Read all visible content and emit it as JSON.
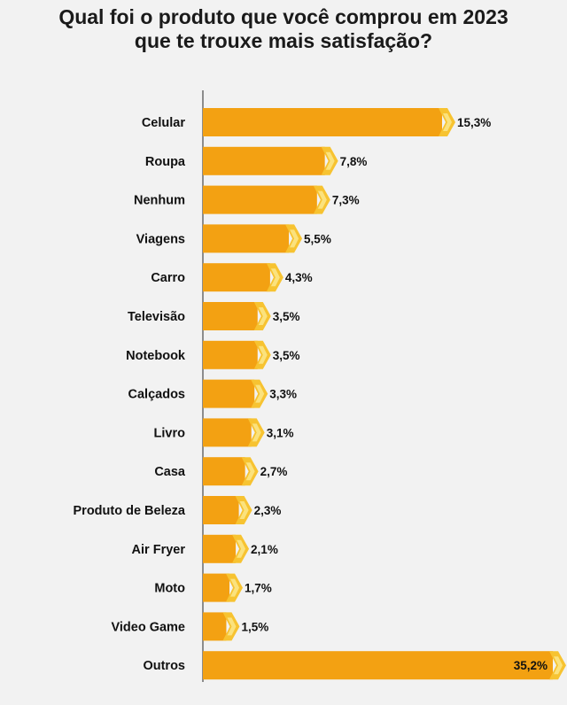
{
  "chart_data": {
    "type": "bar",
    "orientation": "horizontal",
    "title": "Qual foi o produto que você comprou em 2023 que te trouxe mais satisfação?",
    "title_lines": [
      "Qual foi o produto que você comprou em 2023",
      "que te trouxe mais satisfação?"
    ],
    "categories": [
      "Celular",
      "Roupa",
      "Nenhum",
      "Viagens",
      "Carro",
      "Televisão",
      "Notebook",
      "Calçados",
      "Livro",
      "Casa",
      "Produto de Beleza",
      "Air Fryer",
      "Moto",
      "Video Game",
      "Outros"
    ],
    "values": [
      15.3,
      7.8,
      7.3,
      5.5,
      4.3,
      3.5,
      3.5,
      3.3,
      3.1,
      2.7,
      2.3,
      2.1,
      1.7,
      1.5,
      35.2
    ],
    "labels": [
      "15,3%",
      "7,8%",
      "7,3%",
      "5,5%",
      "4,3%",
      "3,5%",
      "3,5%",
      "3,3%",
      "3,1%",
      "2,7%",
      "2,3%",
      "2,1%",
      "1,7%",
      "1,5%",
      "35,2%"
    ],
    "xlabel": "",
    "ylabel": "",
    "grid": false,
    "legend": "none",
    "colors": {
      "bar": "#f3a112",
      "arrow_outer": "#f7c331",
      "arrow_inner": "#fbe27d",
      "axis": "#8c8c8c"
    }
  }
}
